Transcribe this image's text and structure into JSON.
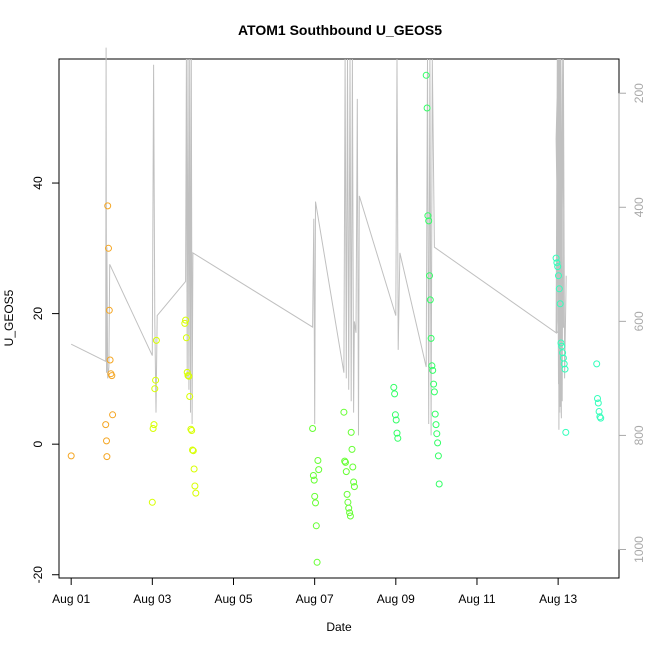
{
  "chart_data": {
    "type": "scatter",
    "title": "ATOM1 Southbound U_GEOS5",
    "xlabel": "Date",
    "ylabel": "U_GEOS5",
    "x_unit": "days since Aug 01",
    "xlim": [
      -0.3,
      13.5
    ],
    "ylim": [
      -20.5,
      59
    ],
    "x_ticks": [
      {
        "value": 0,
        "label": "Aug 01"
      },
      {
        "value": 2,
        "label": "Aug 03"
      },
      {
        "value": 4,
        "label": "Aug 05"
      },
      {
        "value": 6,
        "label": "Aug 07"
      },
      {
        "value": 8,
        "label": "Aug 09"
      },
      {
        "value": 10,
        "label": "Aug 11"
      },
      {
        "value": 12,
        "label": "Aug 13"
      }
    ],
    "y_ticks": [
      -20,
      0,
      20,
      40
    ],
    "right_axis": {
      "color": "#a9a9a9",
      "reversed": true,
      "lim": [
        140,
        1050
      ],
      "ticks": [
        200,
        400,
        600,
        800,
        1000
      ]
    },
    "grid": false,
    "pressure_line": {
      "color": "#c0c0c0",
      "points": [
        [
          0.0,
          640
        ],
        [
          0.85,
          670
        ],
        [
          0.86,
          120
        ],
        [
          0.87,
          690
        ],
        [
          0.88,
          470
        ],
        [
          0.9,
          700
        ],
        [
          0.93,
          680
        ],
        [
          0.95,
          500
        ],
        [
          2.0,
          660
        ],
        [
          2.03,
          150
        ],
        [
          2.06,
          600
        ],
        [
          2.09,
          760
        ],
        [
          2.12,
          590
        ],
        [
          2.82,
          530
        ],
        [
          2.84,
          140
        ],
        [
          2.86,
          700
        ],
        [
          2.88,
          140
        ],
        [
          2.9,
          720
        ],
        [
          2.92,
          140
        ],
        [
          2.94,
          760
        ],
        [
          2.96,
          140
        ],
        [
          2.98,
          780
        ],
        [
          3.0,
          480
        ],
        [
          5.95,
          610
        ],
        [
          5.98,
          420
        ],
        [
          6.0,
          780
        ],
        [
          6.02,
          390
        ],
        [
          6.72,
          690
        ],
        [
          6.75,
          140
        ],
        [
          6.78,
          700
        ],
        [
          6.81,
          140
        ],
        [
          6.84,
          720
        ],
        [
          6.87,
          140
        ],
        [
          6.9,
          740
        ],
        [
          6.93,
          140
        ],
        [
          6.96,
          760
        ],
        [
          6.98,
          600
        ],
        [
          7.02,
          620
        ],
        [
          7.05,
          210
        ],
        [
          7.08,
          800
        ],
        [
          7.1,
          380
        ],
        [
          8.0,
          590
        ],
        [
          8.03,
          140
        ],
        [
          8.06,
          650
        ],
        [
          8.1,
          480
        ],
        [
          8.75,
          680
        ],
        [
          8.78,
          140
        ],
        [
          8.81,
          780
        ],
        [
          8.84,
          140
        ],
        [
          8.87,
          800
        ],
        [
          8.9,
          140
        ],
        [
          8.95,
          470
        ],
        [
          11.95,
          620
        ],
        [
          11.98,
          140
        ],
        [
          12.01,
          710
        ],
        [
          12.04,
          140
        ],
        [
          12.07,
          760
        ],
        [
          12.1,
          140
        ],
        [
          12.13,
          610
        ],
        [
          11.97,
          620
        ],
        [
          12.0,
          140
        ],
        [
          12.02,
          790
        ],
        [
          12.05,
          140
        ],
        [
          12.08,
          770
        ],
        [
          12.0,
          600
        ],
        [
          12.02,
          140
        ],
        [
          12.05,
          750
        ],
        [
          11.95,
          280
        ],
        [
          12.0,
          140
        ],
        [
          12.03,
          760
        ],
        [
          12.06,
          140
        ],
        [
          12.1,
          740
        ],
        [
          12.13,
          140
        ],
        [
          12.16,
          700
        ],
        [
          12.2,
          520
        ]
      ]
    },
    "series": [
      {
        "color": "#f5a623",
        "points": [
          [
            0,
            -1.8
          ],
          [
            0.85,
            3.0
          ],
          [
            0.87,
            0.5
          ],
          [
            0.88,
            -1.9
          ],
          [
            0.9,
            36.5
          ],
          [
            0.92,
            30.0
          ],
          [
            0.94,
            20.5
          ],
          [
            0.96,
            12.9
          ],
          [
            0.98,
            10.8
          ],
          [
            1.0,
            10.5
          ],
          [
            1.02,
            4.5
          ]
        ]
      },
      {
        "color": "#d8ff00",
        "points": [
          [
            2.0,
            -8.9
          ],
          [
            2.02,
            2.4
          ],
          [
            2.04,
            3.0
          ],
          [
            2.06,
            8.5
          ],
          [
            2.08,
            9.8
          ],
          [
            2.1,
            15.9
          ],
          [
            2.8,
            18.5
          ],
          [
            2.82,
            19.0
          ],
          [
            2.84,
            16.3
          ],
          [
            2.86,
            11.0
          ],
          [
            2.88,
            10.5
          ],
          [
            2.9,
            10.4
          ],
          [
            2.92,
            7.3
          ],
          [
            2.95,
            2.3
          ],
          [
            2.97,
            2.1
          ],
          [
            2.99,
            -0.9
          ],
          [
            3.01,
            -1.0
          ],
          [
            3.03,
            -3.8
          ],
          [
            3.05,
            -6.4
          ],
          [
            3.07,
            -7.5
          ]
        ]
      },
      {
        "color": "#66ff33",
        "points": [
          [
            5.95,
            2.4
          ],
          [
            5.97,
            -4.8
          ],
          [
            5.99,
            -5.5
          ],
          [
            6.0,
            -8.0
          ],
          [
            6.02,
            -9.0
          ],
          [
            6.04,
            -12.5
          ],
          [
            6.06,
            -18.1
          ],
          [
            6.08,
            -2.5
          ],
          [
            6.1,
            -3.9
          ],
          [
            6.72,
            4.9
          ],
          [
            6.74,
            -2.6
          ],
          [
            6.76,
            -2.8
          ],
          [
            6.78,
            -4.2
          ],
          [
            6.8,
            -7.7
          ],
          [
            6.82,
            -8.9
          ],
          [
            6.84,
            -9.8
          ],
          [
            6.86,
            -10.5
          ],
          [
            6.88,
            -11.0
          ],
          [
            6.9,
            1.8
          ],
          [
            6.92,
            -0.8
          ],
          [
            6.94,
            -3.5
          ],
          [
            6.96,
            -5.8
          ],
          [
            6.98,
            -6.5
          ]
        ]
      },
      {
        "color": "#33ff66",
        "points": [
          [
            7.95,
            8.7
          ],
          [
            7.97,
            7.7
          ],
          [
            7.99,
            4.5
          ],
          [
            8.01,
            3.7
          ],
          [
            8.03,
            1.7
          ],
          [
            8.05,
            0.9
          ],
          [
            8.75,
            56.5
          ],
          [
            8.77,
            51.5
          ],
          [
            8.79,
            35.0
          ],
          [
            8.81,
            34.2
          ],
          [
            8.83,
            25.8
          ],
          [
            8.85,
            22.1
          ],
          [
            8.87,
            16.2
          ],
          [
            8.89,
            12.0
          ],
          [
            8.91,
            11.3
          ],
          [
            8.93,
            9.2
          ],
          [
            8.95,
            8.0
          ],
          [
            8.97,
            4.6
          ],
          [
            8.99,
            3.0
          ],
          [
            9.01,
            1.6
          ],
          [
            9.03,
            0.2
          ],
          [
            9.05,
            -1.8
          ],
          [
            9.07,
            -6.1
          ]
        ]
      },
      {
        "color": "#33ffbb",
        "points": [
          [
            11.95,
            28.5
          ],
          [
            11.97,
            27.8
          ],
          [
            11.99,
            27.2
          ],
          [
            12.01,
            25.8
          ],
          [
            12.03,
            23.8
          ],
          [
            12.05,
            21.5
          ],
          [
            12.07,
            15.5
          ],
          [
            12.09,
            15.0
          ],
          [
            12.11,
            14.0
          ],
          [
            12.13,
            13.2
          ],
          [
            12.15,
            12.3
          ],
          [
            12.17,
            11.5
          ],
          [
            12.19,
            1.8
          ],
          [
            12.95,
            12.3
          ],
          [
            12.97,
            7.0
          ],
          [
            12.99,
            6.3
          ],
          [
            13.01,
            5.0
          ],
          [
            13.03,
            4.2
          ],
          [
            13.05,
            4.0
          ]
        ]
      }
    ]
  }
}
